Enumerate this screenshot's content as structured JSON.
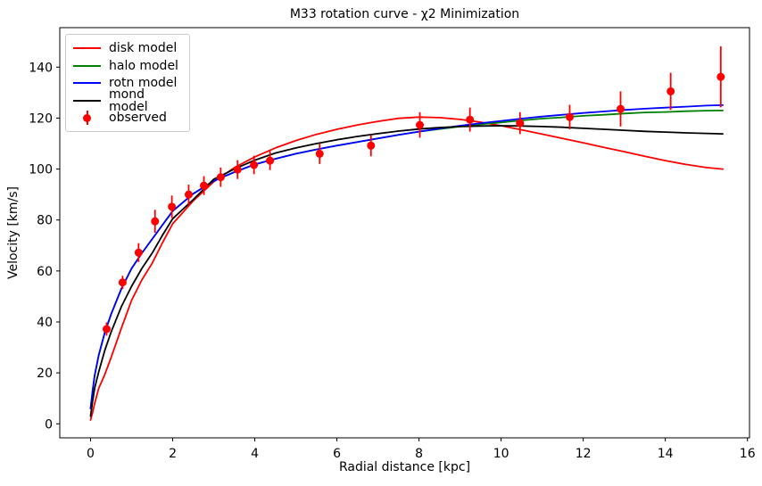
{
  "figure": {
    "background": "#ffffff"
  },
  "chart_data": {
    "type": "line",
    "title": "M33 rotation curve - χ2 Minimization",
    "xlabel": "Radial distance [kpc]",
    "ylabel": "Velocity [km/s]",
    "xlim": [
      -0.75,
      16.05
    ],
    "ylim": [
      -5.5,
      155.5
    ],
    "xticks": [
      0,
      2,
      4,
      6,
      8,
      10,
      12,
      14,
      16
    ],
    "yticks": [
      0,
      20,
      40,
      60,
      80,
      100,
      120,
      140
    ],
    "grid": false,
    "legend_position": "upper left",
    "axis_color": "#000000",
    "x": [
      0,
      0.05,
      0.1,
      0.2,
      0.35,
      0.5,
      0.75,
      1,
      1.25,
      1.5,
      1.75,
      2,
      2.5,
      3,
      3.5,
      4,
      4.5,
      5,
      5.5,
      6,
      6.5,
      7,
      7.5,
      8,
      8.5,
      9,
      9.5,
      10,
      10.5,
      11,
      11.5,
      12,
      12.5,
      13,
      13.5,
      14,
      14.5,
      15,
      15.4
    ],
    "series": [
      {
        "id": "disk",
        "label": "disk model",
        "color": "#ff0000",
        "y": [
          1.5,
          4.5,
          8,
          14,
          19.5,
          26,
          37.5,
          48.5,
          56.5,
          63,
          71,
          78.5,
          87.5,
          95,
          100.5,
          104.8,
          108.3,
          111.2,
          113.6,
          115.6,
          117.3,
          118.7,
          119.9,
          120.4,
          120.2,
          119.5,
          118.4,
          117.0,
          115.4,
          113.7,
          112.0,
          110.3,
          108.5,
          106.8,
          105.0,
          103.3,
          101.8,
          100.6,
          100.0
        ]
      },
      {
        "id": "halo",
        "label": "halo model",
        "color": "#008000",
        "y": [
          6,
          13,
          19,
          27,
          36,
          43,
          53,
          61,
          67,
          72.5,
          78,
          83.5,
          90.3,
          95.3,
          98.8,
          101.8,
          104,
          106,
          107.7,
          109.2,
          110.6,
          112,
          113.4,
          114.7,
          115.7,
          116.7,
          117.6,
          118.3,
          119.1,
          119.8,
          120.3,
          120.9,
          121.3,
          121.8,
          122.2,
          122.4,
          122.7,
          122.9,
          123.0
        ]
      },
      {
        "id": "rotn",
        "label": "rotn model",
        "color": "#0000ff",
        "y": [
          6,
          13,
          19,
          27,
          36,
          43,
          53,
          61,
          67,
          72.5,
          78,
          83.5,
          90.3,
          95.3,
          98.8,
          101.8,
          104,
          106,
          107.7,
          109.2,
          110.6,
          112,
          113.4,
          114.7,
          115.9,
          117,
          118,
          118.9,
          119.8,
          120.6,
          121.3,
          122,
          122.6,
          123.2,
          123.7,
          124.1,
          124.5,
          124.9,
          125.1
        ]
      },
      {
        "id": "mond",
        "label": "mond model",
        "color": "#000000",
        "y": [
          3,
          9,
          14,
          20.5,
          29,
          36,
          46,
          54,
          61,
          67,
          74,
          80.5,
          88,
          96,
          100,
          103.5,
          106.3,
          108.3,
          110,
          111.5,
          112.8,
          113.9,
          114.9,
          115.7,
          116.3,
          116.7,
          116.9,
          117,
          116.9,
          116.7,
          116.4,
          116,
          115.6,
          115.2,
          114.8,
          114.5,
          114.2,
          114,
          113.8
        ]
      }
    ],
    "observed": {
      "label": "observed",
      "color": "#ff0000",
      "marker": "o",
      "x": [
        0.39,
        0.78,
        1.17,
        1.57,
        1.98,
        2.39,
        2.76,
        3.17,
        3.58,
        3.98,
        4.37,
        5.58,
        6.83,
        8.02,
        9.24,
        10.46,
        11.67,
        12.91,
        14.13,
        15.35
      ],
      "y": [
        37.2,
        55.5,
        67.2,
        79.5,
        85.2,
        90.0,
        93.5,
        96.8,
        99.8,
        101.6,
        103.3,
        106.0,
        109.2,
        117.3,
        119.4,
        118.0,
        120.4,
        123.6,
        130.5,
        136.2
      ],
      "yerr": [
        2.6,
        2.6,
        3.7,
        4.5,
        4.4,
        3.9,
        3.7,
        3.8,
        3.7,
        3.6,
        3.7,
        4.0,
        4.2,
        5.0,
        4.7,
        4.3,
        4.8,
        6.9,
        7.3,
        12.0
      ]
    }
  }
}
